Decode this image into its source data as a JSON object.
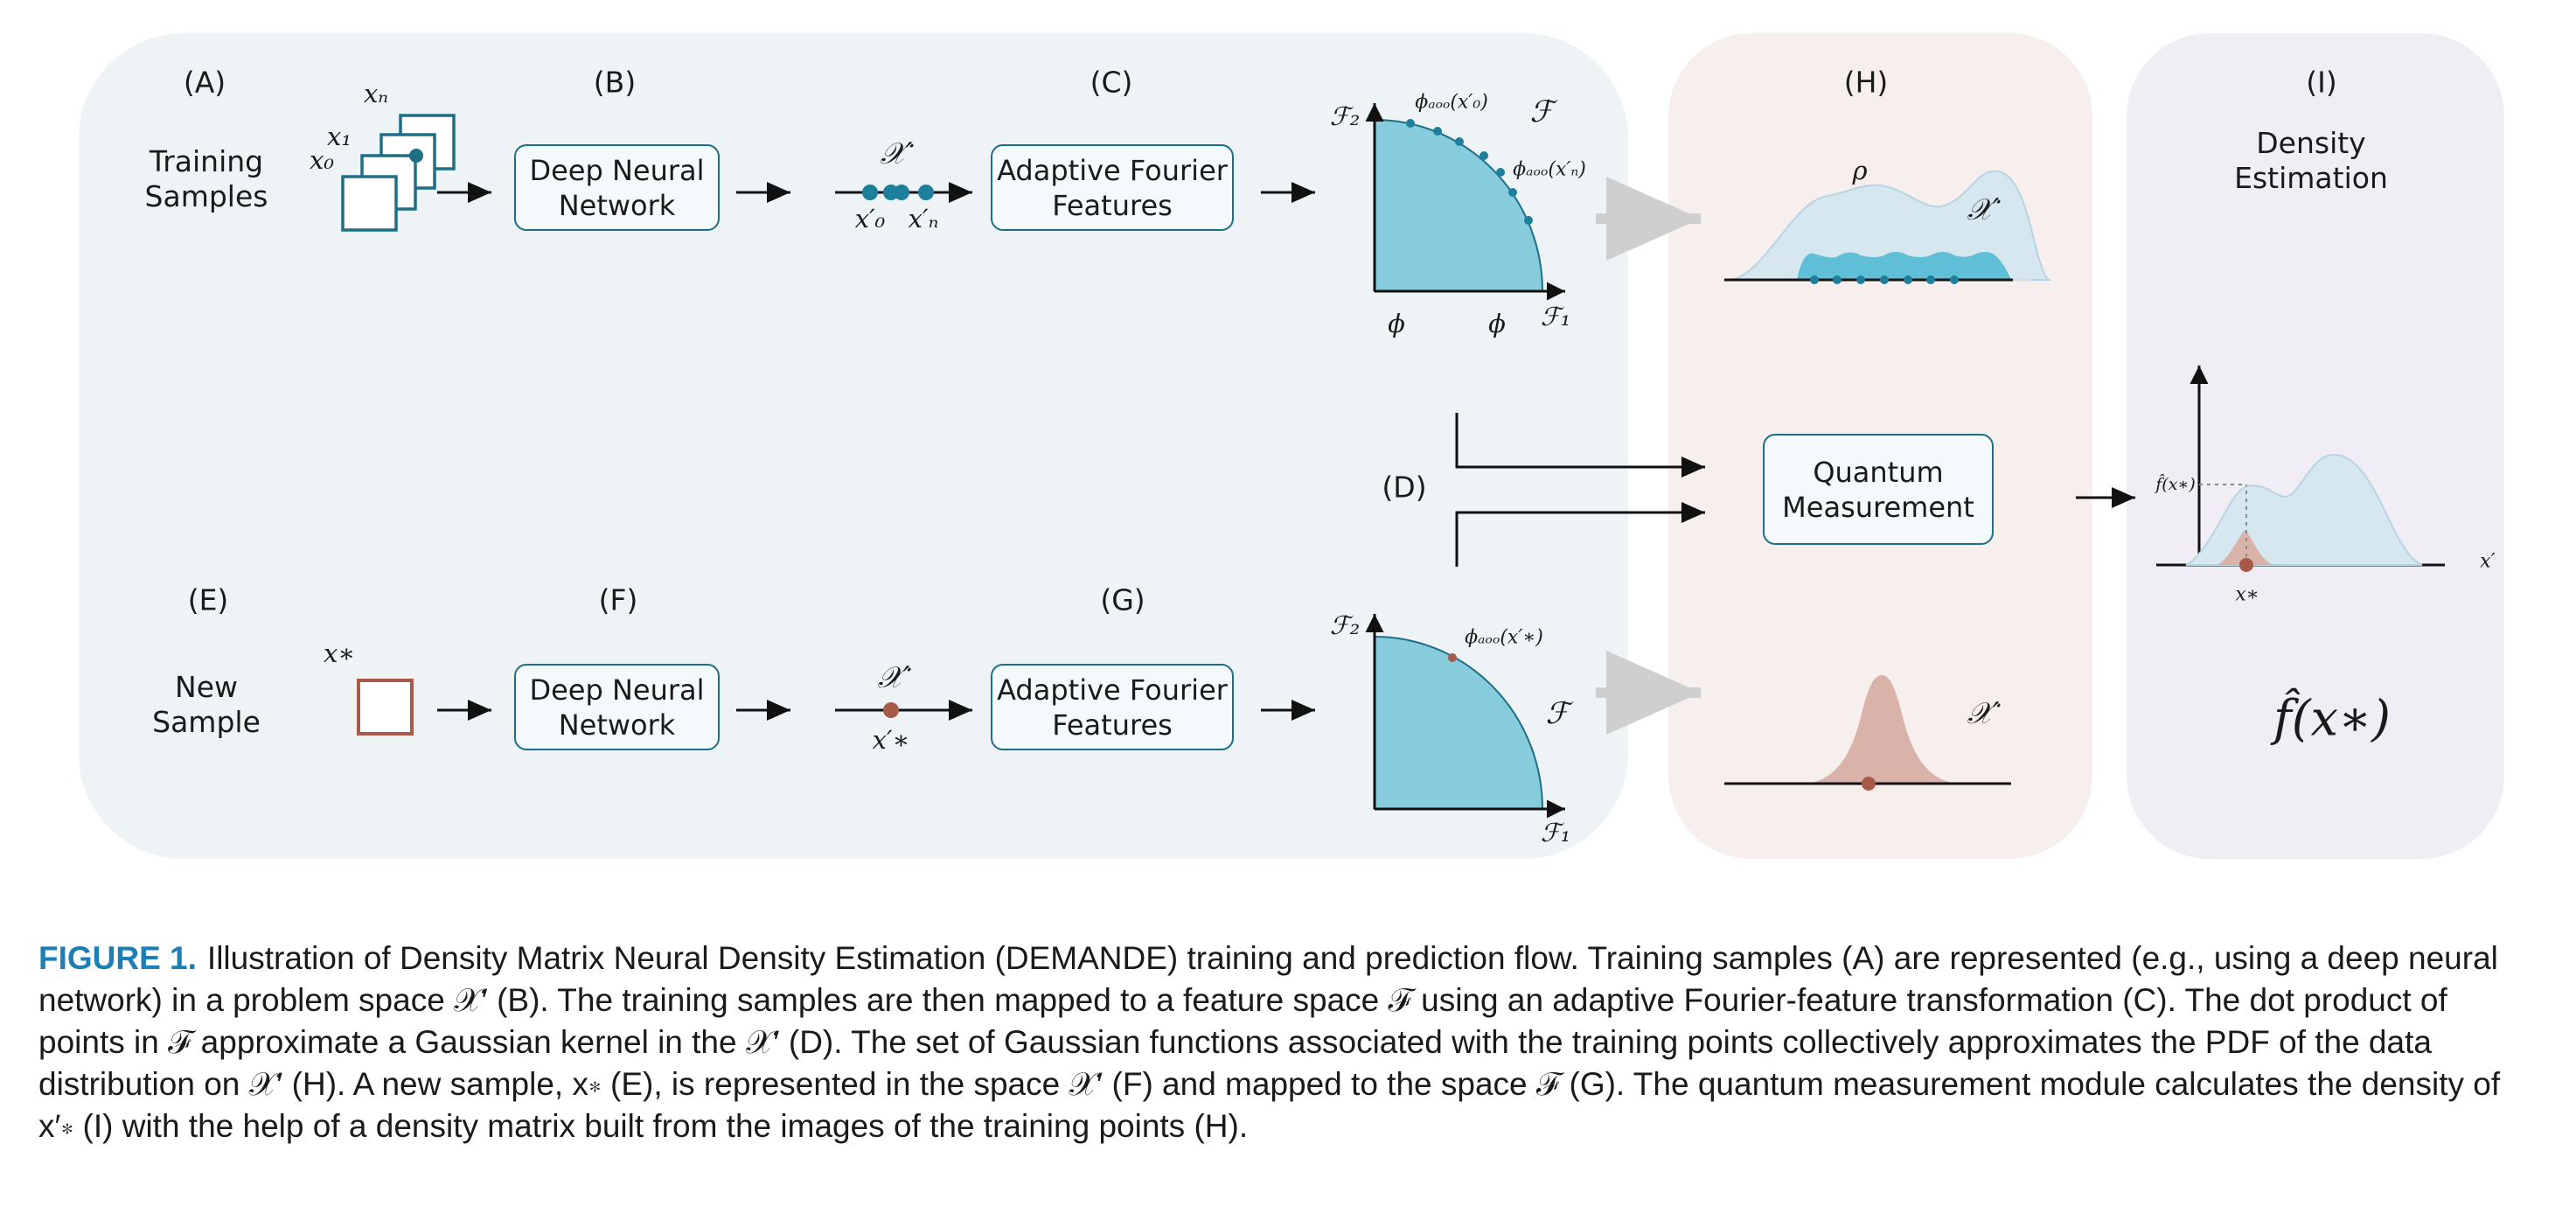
{
  "panels": {
    "A": {
      "letter": "(A)",
      "label": "Training\nSamples",
      "xn": "xₙ",
      "x1": "x₁",
      "x0": "x₀"
    },
    "B": {
      "letter": "(B)",
      "box": "Deep Neural\nNetwork"
    },
    "C": {
      "letter": "(C)",
      "box": "Adaptive Fourier\nFeatures"
    },
    "X_train": {
      "space": "𝒳′",
      "x0p": "x′₀",
      "xnp": "x′ₙ"
    },
    "F_train": {
      "f2": "ℱ₂",
      "f1": "ℱ₁",
      "f": "ℱ",
      "phi_x0": "ϕₐₒₒ(x′₀)",
      "phi_xn": "ϕₐₒₒ(x′ₙ)",
      "phi_a": "ϕ",
      "phi_b": "ϕ"
    },
    "D": {
      "letter": "(D)"
    },
    "E": {
      "letter": "(E)",
      "label": "New\nSample",
      "xstar": "x∗"
    },
    "F": {
      "letter": "(F)",
      "box": "Deep Neural\nNetwork"
    },
    "G": {
      "letter": "(G)",
      "box": "Adaptive Fourier\nFeatures"
    },
    "X_new": {
      "space": "𝒳′",
      "xstarp": "x′∗"
    },
    "F_new": {
      "f2": "ℱ₂",
      "f1": "ℱ₁",
      "f": "ℱ",
      "phi_xstar": "ϕₐₒₒ(x′∗)"
    },
    "H": {
      "letter": "(H)",
      "rho": "ρ",
      "space_top": "𝒳′",
      "space_bottom": "𝒳′",
      "qm_box": "Quantum\nMeasurement"
    },
    "I": {
      "letter": "(I)",
      "title": "Density\nEstimation",
      "fhat_axis": "f̂(x∗)",
      "xstar": "x∗",
      "xprime": "x′",
      "result": "f̂(x∗)"
    }
  },
  "caption": {
    "label": "FIGURE 1.",
    "text": "Illustration of Density Matrix Neural Density Estimation (DEMANDE) training and prediction flow. Training samples (A) are represented (e.g., using a deep neural network) in a problem space 𝒳′ (B). The training samples are then mapped to a feature space ℱ using an adaptive Fourier-feature transformation (C). The dot product of points in ℱ approximate a Gaussian kernel in the 𝒳′ (D). The set of Gaussian functions associated with the training points collectively approximates the PDF of the data distribution on 𝒳′ (H). A new sample, x∗ (E), is represented in the space 𝒳′ (F) and mapped to the space ℱ (G). The quantum measurement module calculates the density of x′∗ (I) with the help of a density matrix built from the images of the training points (H)."
  },
  "colors": {
    "left_panel": "#eef4f5",
    "h_panel": "#f6efed",
    "i_panel": "#f1edf4",
    "teal": "#1e6e85",
    "teal_fill": "#86ccdc",
    "light_blue": "#d6e7f0",
    "rust": "#a85a48",
    "rust_fill": "#d9b3aa",
    "caption_label": "#1a7fb5"
  }
}
